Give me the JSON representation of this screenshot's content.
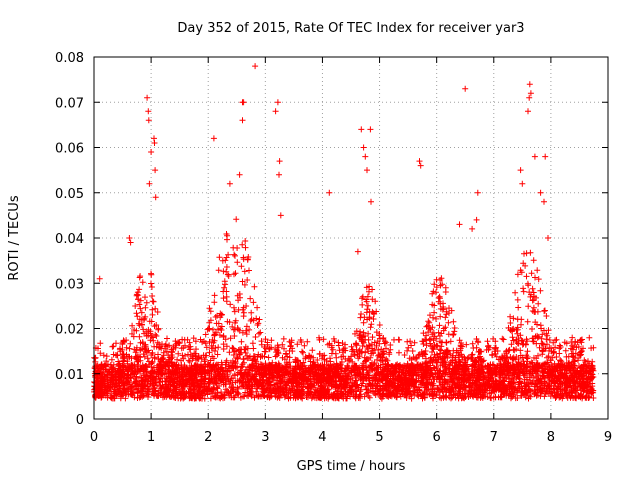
{
  "chart_data": {
    "type": "scatter",
    "title": "Day 352 of 2015, Rate Of TEC Index for receiver yar3",
    "xlabel": "GPS time / hours",
    "ylabel": "ROTI / TECUs",
    "xlim": [
      0,
      9
    ],
    "ylim": [
      0,
      0.08
    ],
    "xticks": [
      "0",
      "1",
      "2",
      "3",
      "4",
      "5",
      "6",
      "7",
      "8",
      "9"
    ],
    "yticks": [
      "0",
      "0.01",
      "0.02",
      "0.03",
      "0.04",
      "0.05",
      "0.06",
      "0.07",
      "0.08"
    ],
    "grid": true,
    "marker": "+",
    "color": "#ff0000",
    "series": [
      {
        "name": "yar3",
        "x_range": [
          0,
          8.75
        ],
        "baseline_median": 0.009,
        "note": "approximately 5000 points; dense band 0.003-0.02 with activity bursts",
        "bursts": [
          {
            "center": 0.9,
            "width": 0.35,
            "peak": 0.035
          },
          {
            "center": 2.45,
            "width": 0.55,
            "peak": 0.045
          },
          {
            "center": 4.8,
            "width": 0.35,
            "peak": 0.03
          },
          {
            "center": 6.05,
            "width": 0.4,
            "peak": 0.032
          },
          {
            "center": 7.6,
            "width": 0.45,
            "peak": 0.038
          }
        ],
        "outliers": [
          [
            0.1,
            0.031
          ],
          [
            0.62,
            0.04
          ],
          [
            0.64,
            0.039
          ],
          [
            0.93,
            0.071
          ],
          [
            0.95,
            0.068
          ],
          [
            0.96,
            0.066
          ],
          [
            0.97,
            0.052
          ],
          [
            1.0,
            0.059
          ],
          [
            1.05,
            0.062
          ],
          [
            1.06,
            0.061
          ],
          [
            1.07,
            0.055
          ],
          [
            1.08,
            0.049
          ],
          [
            2.1,
            0.062
          ],
          [
            2.38,
            0.052
          ],
          [
            2.55,
            0.054
          ],
          [
            2.6,
            0.07
          ],
          [
            2.62,
            0.07
          ],
          [
            2.6,
            0.066
          ],
          [
            2.82,
            0.078
          ],
          [
            3.18,
            0.068
          ],
          [
            3.22,
            0.07
          ],
          [
            3.25,
            0.057
          ],
          [
            3.24,
            0.054
          ],
          [
            3.27,
            0.045
          ],
          [
            4.12,
            0.05
          ],
          [
            4.62,
            0.037
          ],
          [
            4.68,
            0.064
          ],
          [
            4.72,
            0.06
          ],
          [
            4.75,
            0.058
          ],
          [
            4.78,
            0.055
          ],
          [
            4.84,
            0.064
          ],
          [
            4.85,
            0.048
          ],
          [
            5.7,
            0.057
          ],
          [
            5.72,
            0.056
          ],
          [
            6.5,
            0.073
          ],
          [
            6.72,
            0.05
          ],
          [
            6.7,
            0.044
          ],
          [
            6.4,
            0.043
          ],
          [
            6.62,
            0.042
          ],
          [
            7.47,
            0.055
          ],
          [
            7.5,
            0.052
          ],
          [
            7.6,
            0.068
          ],
          [
            7.62,
            0.071
          ],
          [
            7.63,
            0.074
          ],
          [
            7.65,
            0.072
          ],
          [
            7.72,
            0.058
          ],
          [
            7.82,
            0.05
          ],
          [
            7.9,
            0.058
          ],
          [
            7.88,
            0.048
          ],
          [
            7.95,
            0.04
          ]
        ]
      }
    ]
  }
}
